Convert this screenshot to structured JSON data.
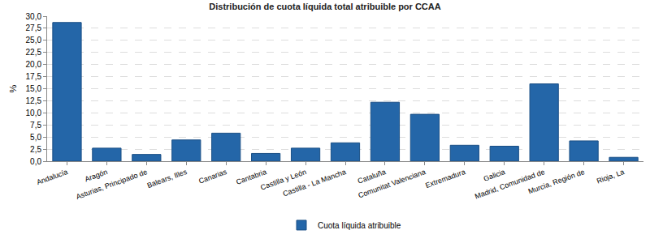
{
  "chart_data": {
    "type": "bar",
    "title": "Distribución de cuota líquida total atribuible por CCAA",
    "y_label": "%",
    "categories": [
      "Andalucía",
      "Aragón",
      "Asturias, Principado de",
      "Balears, Illes",
      "Canarias",
      "Cantabria",
      "Castilla y León",
      "Castilla - La Mancha",
      "Cataluña",
      "Comunitat Valenciana",
      "Extremadura",
      "Galicia",
      "Madrid, Comunidad de",
      "Murcia, Región de",
      "Rioja, La"
    ],
    "series": [
      {
        "name": "Cuota líquida atribuible",
        "color": "#2466a8",
        "values": [
          28.7,
          2.7,
          1.4,
          4.4,
          5.8,
          1.6,
          2.7,
          3.8,
          12.2,
          9.7,
          3.3,
          3.1,
          16.0,
          4.2,
          0.8
        ]
      }
    ],
    "ylim": [
      0,
      30
    ],
    "yticks": [
      {
        "value": 0,
        "label": "0,0"
      },
      {
        "value": 2.5,
        "label": "2,5"
      },
      {
        "value": 5,
        "label": "5,0"
      },
      {
        "value": 7.5,
        "label": "7,5"
      },
      {
        "value": 10,
        "label": "10,0"
      },
      {
        "value": 12.5,
        "label": "12,5"
      },
      {
        "value": 15,
        "label": "15,0"
      },
      {
        "value": 17.5,
        "label": "17,5"
      },
      {
        "value": 20,
        "label": "20,0"
      },
      {
        "value": 22.5,
        "label": "22,5"
      },
      {
        "value": 25,
        "label": "25,0"
      },
      {
        "value": 27.5,
        "label": "27,5"
      },
      {
        "value": 30,
        "label": "30,0"
      }
    ],
    "grid": true,
    "legend": "bottom"
  }
}
